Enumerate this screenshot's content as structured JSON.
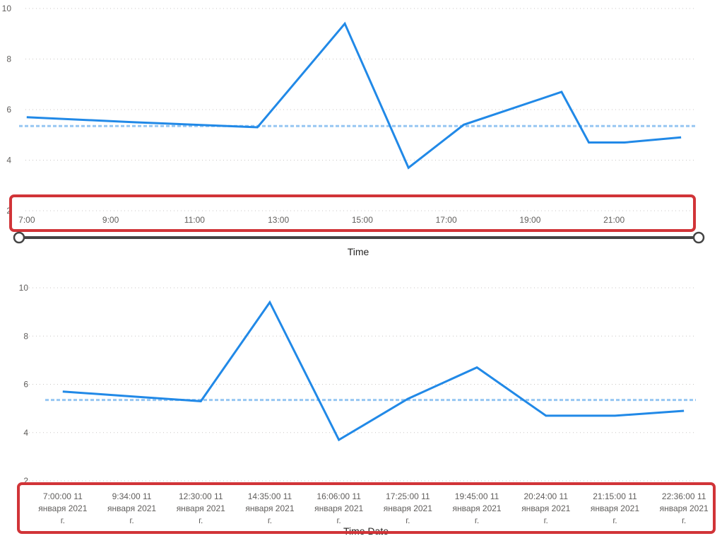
{
  "colors": {
    "series": "#2189e7",
    "average": "#97c7f2",
    "highlight": "#d13438",
    "slider": "#444444"
  },
  "chart_data": [
    {
      "type": "line",
      "xlabel": "Time",
      "ylabel": "",
      "ylim": [
        2,
        10
      ],
      "yticks": [
        "2",
        "4",
        "6",
        "8",
        "10"
      ],
      "x_axis_kind": "continuous time",
      "xlim": [
        "6:45",
        "22:50"
      ],
      "xticks": [
        "7:00",
        "9:00",
        "11:00",
        "13:00",
        "15:00",
        "17:00",
        "19:00",
        "21:00"
      ],
      "x": [
        "7:00",
        "9:34",
        "12:30",
        "14:35",
        "16:06",
        "17:25",
        "19:45",
        "20:24",
        "21:15",
        "22:36"
      ],
      "series": [
        {
          "values": [
            5.7,
            5.5,
            5.3,
            9.4,
            3.7,
            5.4,
            6.7,
            4.7,
            4.7,
            4.9
          ]
        }
      ],
      "average_line": 5.35,
      "grid": true,
      "range_slider": true
    },
    {
      "type": "line",
      "xlabel": "Time Date",
      "ylabel": "",
      "ylim": [
        2,
        10
      ],
      "yticks": [
        "2",
        "4",
        "6",
        "8",
        "10"
      ],
      "x_axis_kind": "categorical",
      "categories": [
        [
          "7:00:00 11",
          "января 2021",
          "г."
        ],
        [
          "9:34:00 11",
          "января 2021",
          "г."
        ],
        [
          "12:30:00 11",
          "января 2021",
          "г."
        ],
        [
          "14:35:00 11",
          "января 2021",
          "г."
        ],
        [
          "16:06:00 11",
          "января 2021",
          "г."
        ],
        [
          "17:25:00 11",
          "января 2021",
          "г."
        ],
        [
          "19:45:00 11",
          "января 2021",
          "г."
        ],
        [
          "20:24:00 11",
          "января 2021",
          "г."
        ],
        [
          "21:15:00 11",
          "января 2021",
          "г."
        ],
        [
          "22:36:00 11",
          "января 2021",
          "г."
        ]
      ],
      "series": [
        {
          "values": [
            5.7,
            5.5,
            5.3,
            9.4,
            3.7,
            5.4,
            6.7,
            4.7,
            4.7,
            4.9
          ]
        }
      ],
      "average_line": 5.35,
      "grid": true
    }
  ]
}
